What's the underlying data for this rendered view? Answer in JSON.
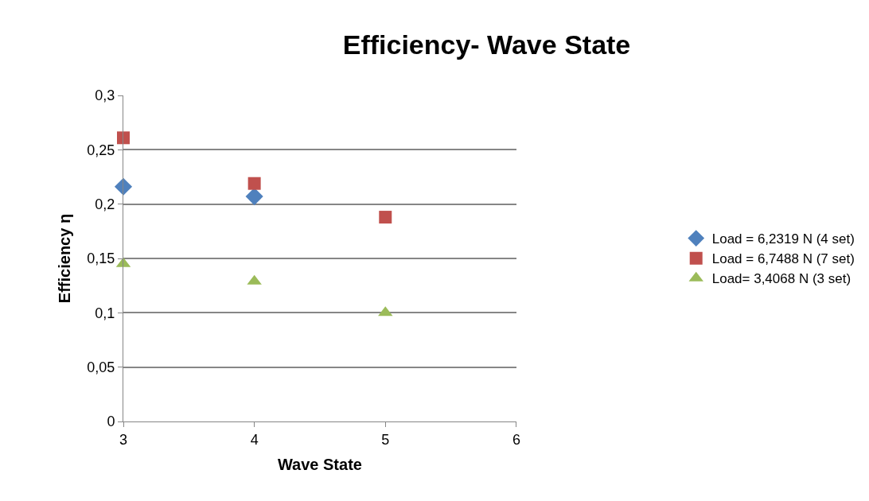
{
  "chart_data": {
    "type": "scatter",
    "title": "Efficiency- Wave State",
    "xlabel": "Wave State",
    "ylabel": "Efficiency η",
    "x": [
      3,
      4,
      5
    ],
    "series": [
      {
        "name": "Load = 6,2319 N (4 set)",
        "color": "#4f81bd",
        "marker": "diamond",
        "values": [
          0.216,
          0.207,
          null
        ]
      },
      {
        "name": "Load = 6,7488 N (7 set)",
        "color": "#c0504d",
        "marker": "square",
        "values": [
          0.261,
          0.219,
          0.188
        ]
      },
      {
        "name": "Load= 3,4068 N (3 set)",
        "color": "#9bbb59",
        "marker": "triangle",
        "values": [
          0.145,
          0.129,
          0.1
        ]
      }
    ],
    "xlim": [
      3,
      6
    ],
    "xticks": [
      3,
      4,
      5,
      6
    ],
    "ylim": [
      0,
      0.3
    ],
    "yticks": [
      {
        "value": 0,
        "label": "0"
      },
      {
        "value": 0.05,
        "label": "0,05"
      },
      {
        "value": 0.1,
        "label": "0,1"
      },
      {
        "value": 0.15,
        "label": "0,15"
      },
      {
        "value": 0.2,
        "label": "0,2"
      },
      {
        "value": 0.25,
        "label": "0,25"
      },
      {
        "value": 0.3,
        "label": "0,3"
      }
    ],
    "grid": "y",
    "legend": "right"
  }
}
